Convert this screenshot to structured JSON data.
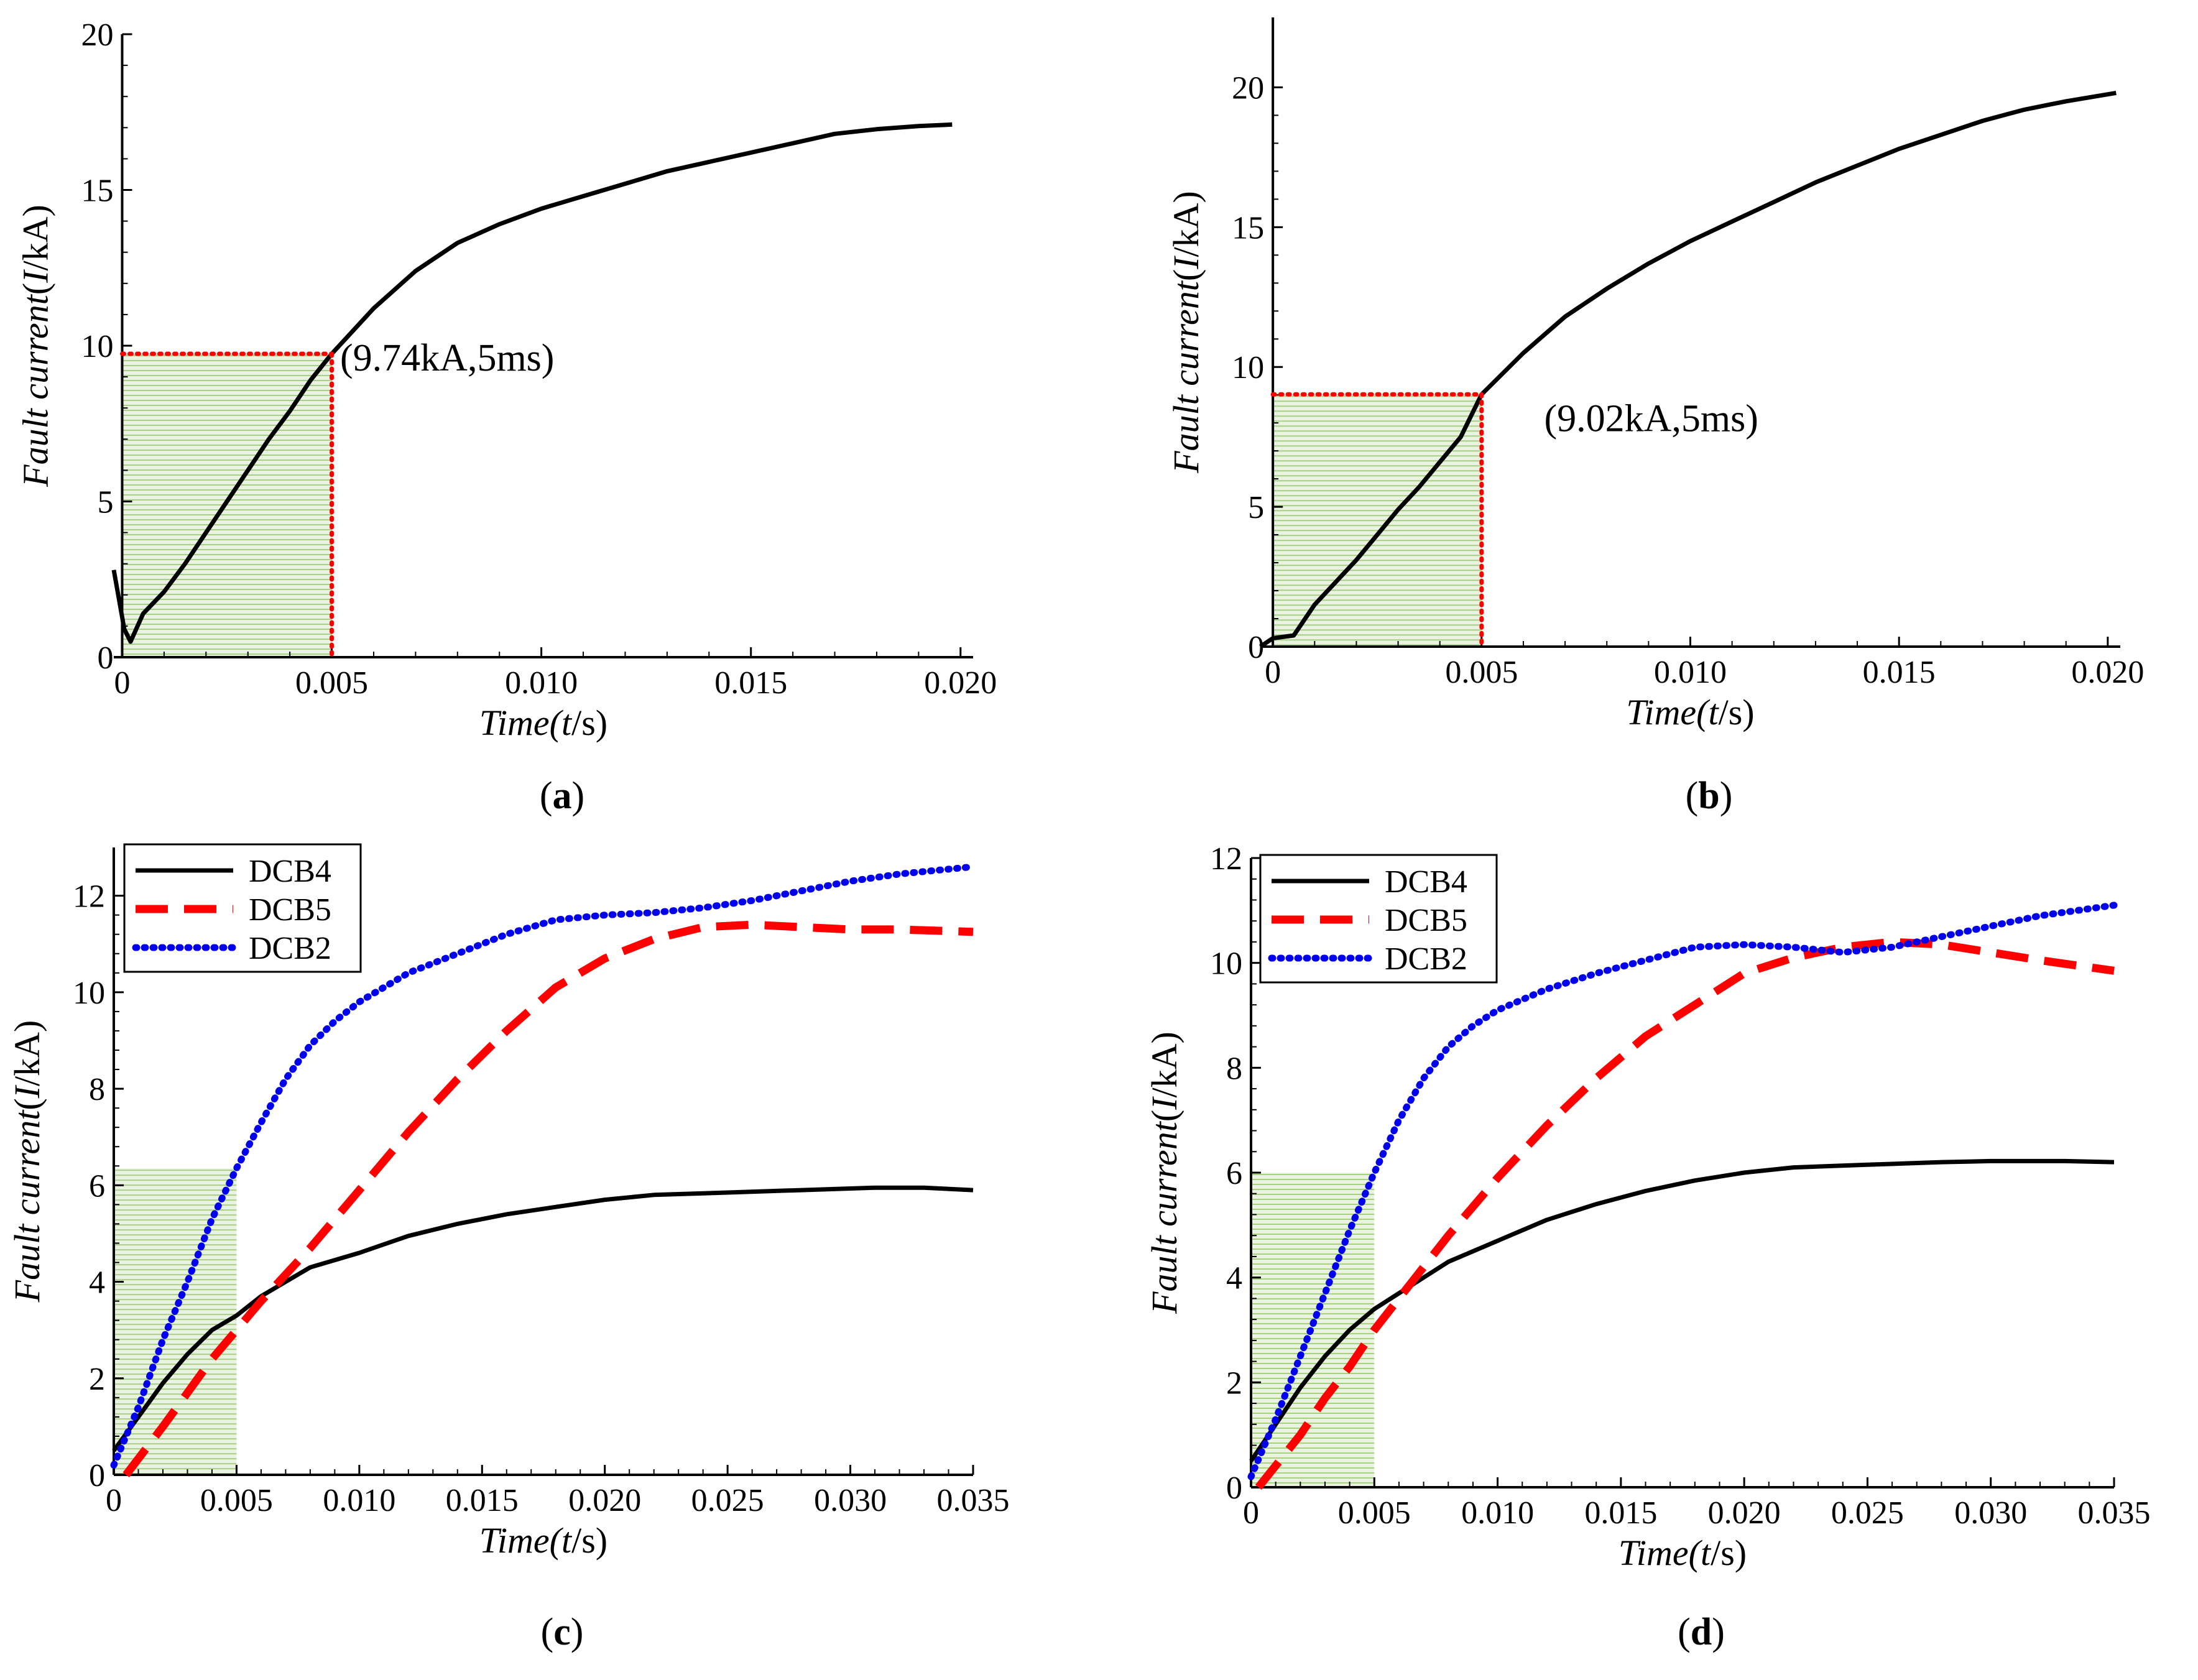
{
  "chart_data": [
    {
      "id": "a",
      "type": "line",
      "panel_label": "a",
      "xlabel": {
        "italic": "Time(",
        "var": "t",
        "unit": "/s)"
      },
      "ylabel": {
        "italic": "Fault current",
        "paren": "(",
        "var": "I",
        "unit": "/kA)"
      },
      "xlim": [
        -0.0002,
        0.0203
      ],
      "ylim": [
        0,
        20
      ],
      "xticks": [
        0,
        0.005,
        0.01,
        0.015,
        0.02
      ],
      "xtick_labels": [
        "0",
        "0.005",
        "0.010",
        "0.015",
        "0.020"
      ],
      "yticks": [
        0,
        5,
        10,
        15,
        20
      ],
      "ytick_labels": [
        "0",
        "5",
        "10",
        "15",
        "20"
      ],
      "shade": {
        "x": [
          0,
          0.005
        ],
        "y": [
          0,
          9.74
        ],
        "color": "#8cbf5e"
      },
      "marker": {
        "x": 0.005,
        "y": 9.74,
        "color": "#ff0000"
      },
      "annotation": {
        "text": "(9.74kA,5ms)",
        "x": 0.0052,
        "y": 9.2
      },
      "series": [
        {
          "name": "Fault current",
          "color": "#000000",
          "style": "solid",
          "points": [
            [
              -0.0002,
              2.8
            ],
            [
              5e-05,
              0.9
            ],
            [
              0.0002,
              0.5
            ],
            [
              0.0005,
              1.4
            ],
            [
              0.001,
              2.1
            ],
            [
              0.0015,
              3.0
            ],
            [
              0.002,
              4.0
            ],
            [
              0.0025,
              5.0
            ],
            [
              0.003,
              6.0
            ],
            [
              0.0035,
              7.0
            ],
            [
              0.004,
              7.9
            ],
            [
              0.0045,
              8.9
            ],
            [
              0.005,
              9.74
            ],
            [
              0.006,
              11.2
            ],
            [
              0.007,
              12.4
            ],
            [
              0.008,
              13.3
            ],
            [
              0.009,
              13.9
            ],
            [
              0.01,
              14.4
            ],
            [
              0.011,
              14.8
            ],
            [
              0.012,
              15.2
            ],
            [
              0.013,
              15.6
            ],
            [
              0.014,
              15.9
            ],
            [
              0.015,
              16.2
            ],
            [
              0.016,
              16.5
            ],
            [
              0.017,
              16.8
            ],
            [
              0.018,
              16.95
            ],
            [
              0.019,
              17.05
            ],
            [
              0.0198,
              17.1
            ]
          ]
        }
      ]
    },
    {
      "id": "b",
      "type": "line",
      "panel_label": "b",
      "xlabel": {
        "italic": "Time(",
        "var": "t",
        "unit": "/s)"
      },
      "ylabel": {
        "italic": "Fault current",
        "paren": "(",
        "var": "I",
        "unit": "/kA)"
      },
      "xlim": [
        -0.0003,
        0.0203
      ],
      "ylim": [
        0,
        22.5
      ],
      "xticks": [
        0,
        0.005,
        0.01,
        0.015,
        0.02
      ],
      "xtick_labels": [
        "0",
        "0.005",
        "0.010",
        "0.015",
        "0.020"
      ],
      "yticks": [
        0,
        5,
        10,
        15,
        20
      ],
      "ytick_labels": [
        "0",
        "5",
        "10",
        "15",
        "20"
      ],
      "shade": {
        "x": [
          0,
          0.005
        ],
        "y": [
          0,
          9.02
        ],
        "color": "#8cbf5e"
      },
      "marker": {
        "x": 0.005,
        "y": 9.02,
        "color": "#ff0000"
      },
      "annotation": {
        "text": "(9.02kA,5ms)",
        "x": 0.0065,
        "y": 7.7
      },
      "series": [
        {
          "name": "Fault current",
          "color": "#000000",
          "style": "solid",
          "points": [
            [
              -0.0003,
              0.0
            ],
            [
              0.0,
              0.3
            ],
            [
              0.0005,
              0.4
            ],
            [
              0.001,
              1.5
            ],
            [
              0.0015,
              2.3
            ],
            [
              0.002,
              3.1
            ],
            [
              0.0025,
              4.0
            ],
            [
              0.003,
              4.9
            ],
            [
              0.0035,
              5.7
            ],
            [
              0.004,
              6.6
            ],
            [
              0.0045,
              7.5
            ],
            [
              0.005,
              9.02
            ],
            [
              0.006,
              10.5
            ],
            [
              0.007,
              11.8
            ],
            [
              0.008,
              12.8
            ],
            [
              0.009,
              13.7
            ],
            [
              0.01,
              14.5
            ],
            [
              0.011,
              15.2
            ],
            [
              0.012,
              15.9
            ],
            [
              0.013,
              16.6
            ],
            [
              0.014,
              17.2
            ],
            [
              0.015,
              17.8
            ],
            [
              0.016,
              18.3
            ],
            [
              0.017,
              18.8
            ],
            [
              0.018,
              19.2
            ],
            [
              0.019,
              19.5
            ],
            [
              0.0202,
              19.8
            ]
          ]
        }
      ]
    },
    {
      "id": "c",
      "type": "line",
      "panel_label": "c",
      "xlabel": {
        "italic": "Time(",
        "var": "t",
        "unit": "/s)"
      },
      "ylabel": {
        "italic": "Fault current",
        "paren": "(",
        "var": "I",
        "unit": "/kA)"
      },
      "xlim": [
        0,
        0.035
      ],
      "ylim": [
        0,
        13
      ],
      "xticks": [
        0,
        0.005,
        0.01,
        0.015,
        0.02,
        0.025,
        0.03,
        0.035
      ],
      "xtick_labels": [
        "0",
        "0.005",
        "0.010",
        "0.015",
        "0.020",
        "0.025",
        "0.030",
        "0.035"
      ],
      "yticks": [
        0,
        2,
        4,
        6,
        8,
        10,
        12
      ],
      "ytick_labels": [
        "0",
        "2",
        "4",
        "6",
        "8",
        "10",
        "12"
      ],
      "shade": {
        "x": [
          0,
          0.005
        ],
        "y": [
          0,
          6.35
        ],
        "color": "#8cbf5e"
      },
      "legend": "top-left",
      "series": [
        {
          "name": "DCB4",
          "color": "#000000",
          "style": "solid",
          "points": [
            [
              0,
              0.5
            ],
            [
              0.001,
              1.2
            ],
            [
              0.002,
              1.9
            ],
            [
              0.003,
              2.5
            ],
            [
              0.004,
              3.0
            ],
            [
              0.005,
              3.3
            ],
            [
              0.006,
              3.7
            ],
            [
              0.007,
              4.0
            ],
            [
              0.008,
              4.3
            ],
            [
              0.01,
              4.6
            ],
            [
              0.012,
              4.95
            ],
            [
              0.014,
              5.2
            ],
            [
              0.016,
              5.4
            ],
            [
              0.018,
              5.55
            ],
            [
              0.02,
              5.7
            ],
            [
              0.022,
              5.8
            ],
            [
              0.025,
              5.85
            ],
            [
              0.028,
              5.9
            ],
            [
              0.031,
              5.95
            ],
            [
              0.033,
              5.95
            ],
            [
              0.035,
              5.9
            ]
          ]
        },
        {
          "name": "DCB5",
          "color": "#ff0000",
          "style": "dashed",
          "points": [
            [
              0.0005,
              0
            ],
            [
              0.002,
              1.0
            ],
            [
              0.003,
              1.7
            ],
            [
              0.004,
              2.4
            ],
            [
              0.005,
              3.0
            ],
            [
              0.006,
              3.6
            ],
            [
              0.008,
              4.7
            ],
            [
              0.01,
              5.9
            ],
            [
              0.012,
              7.1
            ],
            [
              0.014,
              8.2
            ],
            [
              0.016,
              9.2
            ],
            [
              0.018,
              10.1
            ],
            [
              0.02,
              10.7
            ],
            [
              0.022,
              11.1
            ],
            [
              0.024,
              11.35
            ],
            [
              0.026,
              11.4
            ],
            [
              0.028,
              11.35
            ],
            [
              0.03,
              11.3
            ],
            [
              0.032,
              11.3
            ],
            [
              0.035,
              11.25
            ]
          ]
        },
        {
          "name": "DCB2",
          "color": "#0000ee",
          "style": "dotted",
          "points": [
            [
              0,
              0.2
            ],
            [
              0.001,
              1.4
            ],
            [
              0.002,
              2.8
            ],
            [
              0.003,
              4.0
            ],
            [
              0.004,
              5.3
            ],
            [
              0.005,
              6.35
            ],
            [
              0.006,
              7.3
            ],
            [
              0.007,
              8.2
            ],
            [
              0.008,
              8.9
            ],
            [
              0.009,
              9.4
            ],
            [
              0.01,
              9.8
            ],
            [
              0.012,
              10.4
            ],
            [
              0.014,
              10.8
            ],
            [
              0.016,
              11.2
            ],
            [
              0.018,
              11.5
            ],
            [
              0.02,
              11.6
            ],
            [
              0.022,
              11.65
            ],
            [
              0.024,
              11.75
            ],
            [
              0.026,
              11.9
            ],
            [
              0.028,
              12.1
            ],
            [
              0.03,
              12.3
            ],
            [
              0.032,
              12.45
            ],
            [
              0.035,
              12.6
            ]
          ]
        }
      ]
    },
    {
      "id": "d",
      "type": "line",
      "panel_label": "d",
      "xlabel": {
        "italic": "Time(",
        "var": "t",
        "unit": "/s)"
      },
      "ylabel": {
        "italic": "Fault current",
        "paren": "(",
        "var": "I",
        "unit": "/kA)"
      },
      "xlim": [
        0,
        0.035
      ],
      "ylim": [
        0,
        12
      ],
      "xticks": [
        0,
        0.005,
        0.01,
        0.015,
        0.02,
        0.025,
        0.03,
        0.035
      ],
      "xtick_labels": [
        "0",
        "0.005",
        "0.010",
        "0.015",
        "0.020",
        "0.025",
        "0.030",
        "0.035"
      ],
      "yticks": [
        0,
        2,
        4,
        6,
        8,
        10,
        12
      ],
      "ytick_labels": [
        "0",
        "2",
        "4",
        "6",
        "8",
        "10",
        "12"
      ],
      "shade": {
        "x": [
          0,
          0.005
        ],
        "y": [
          0,
          6.0
        ],
        "color": "#8cbf5e"
      },
      "legend": "top-left",
      "series": [
        {
          "name": "DCB4",
          "color": "#000000",
          "style": "solid",
          "points": [
            [
              0,
              0.5
            ],
            [
              0.001,
              1.2
            ],
            [
              0.002,
              1.9
            ],
            [
              0.003,
              2.5
            ],
            [
              0.004,
              3.0
            ],
            [
              0.005,
              3.4
            ],
            [
              0.006,
              3.7
            ],
            [
              0.007,
              4.0
            ],
            [
              0.008,
              4.3
            ],
            [
              0.01,
              4.7
            ],
            [
              0.012,
              5.1
            ],
            [
              0.014,
              5.4
            ],
            [
              0.016,
              5.65
            ],
            [
              0.018,
              5.85
            ],
            [
              0.02,
              6.0
            ],
            [
              0.022,
              6.1
            ],
            [
              0.025,
              6.15
            ],
            [
              0.028,
              6.2
            ],
            [
              0.03,
              6.22
            ],
            [
              0.033,
              6.22
            ],
            [
              0.035,
              6.2
            ]
          ]
        },
        {
          "name": "DCB5",
          "color": "#ff0000",
          "style": "dashed",
          "points": [
            [
              0.0003,
              0
            ],
            [
              0.002,
              1.0
            ],
            [
              0.003,
              1.7
            ],
            [
              0.004,
              2.3
            ],
            [
              0.005,
              3.0
            ],
            [
              0.006,
              3.6
            ],
            [
              0.008,
              4.8
            ],
            [
              0.01,
              5.9
            ],
            [
              0.012,
              6.9
            ],
            [
              0.014,
              7.8
            ],
            [
              0.016,
              8.6
            ],
            [
              0.018,
              9.2
            ],
            [
              0.02,
              9.8
            ],
            [
              0.022,
              10.1
            ],
            [
              0.024,
              10.3
            ],
            [
              0.026,
              10.4
            ],
            [
              0.028,
              10.35
            ],
            [
              0.03,
              10.2
            ],
            [
              0.032,
              10.05
            ],
            [
              0.035,
              9.85
            ]
          ]
        },
        {
          "name": "DCB2",
          "color": "#0000ee",
          "style": "dotted",
          "points": [
            [
              0,
              0.2
            ],
            [
              0.001,
              1.3
            ],
            [
              0.002,
              2.5
            ],
            [
              0.003,
              3.7
            ],
            [
              0.004,
              4.9
            ],
            [
              0.005,
              6.0
            ],
            [
              0.006,
              7.0
            ],
            [
              0.007,
              7.8
            ],
            [
              0.008,
              8.4
            ],
            [
              0.009,
              8.8
            ],
            [
              0.01,
              9.1
            ],
            [
              0.012,
              9.5
            ],
            [
              0.014,
              9.8
            ],
            [
              0.016,
              10.05
            ],
            [
              0.018,
              10.3
            ],
            [
              0.02,
              10.35
            ],
            [
              0.022,
              10.3
            ],
            [
              0.024,
              10.2
            ],
            [
              0.026,
              10.3
            ],
            [
              0.028,
              10.5
            ],
            [
              0.03,
              10.7
            ],
            [
              0.032,
              10.9
            ],
            [
              0.035,
              11.1
            ]
          ]
        }
      ]
    }
  ]
}
